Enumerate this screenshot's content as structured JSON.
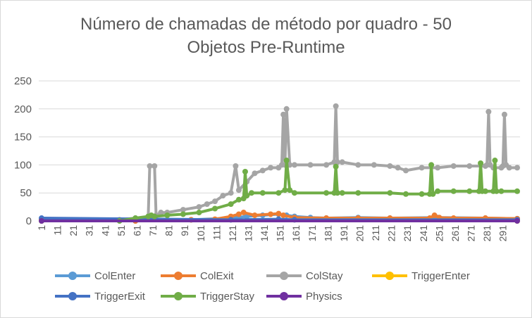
{
  "chart_data": {
    "type": "line",
    "title_line1": "Número de chamadas de método por quadro - 50",
    "title_line2": "Objetos Pre-Runtime",
    "xlabel": "",
    "ylabel": "",
    "ylim": [
      0,
      250
    ],
    "yticks": [
      0,
      50,
      100,
      150,
      200,
      250
    ],
    "xticks": [
      1,
      11,
      21,
      31,
      41,
      51,
      61,
      71,
      81,
      91,
      101,
      111,
      121,
      131,
      141,
      151,
      161,
      171,
      181,
      191,
      201,
      211,
      221,
      231,
      241,
      251,
      261,
      271,
      281,
      291
    ],
    "x_range": [
      1,
      300
    ],
    "grid": true,
    "legend_position": "bottom",
    "series": [
      {
        "name": "ColEnter",
        "color": "#5b9bd5",
        "x": [
          1,
          60,
          95,
          120,
          130,
          140,
          150,
          155,
          160,
          170,
          180,
          200,
          220,
          250,
          280,
          300
        ],
        "values": [
          2,
          0,
          2,
          5,
          8,
          10,
          12,
          10,
          8,
          6,
          5,
          6,
          5,
          6,
          5,
          4
        ]
      },
      {
        "name": "ColExit",
        "color": "#ed7d31",
        "x": [
          1,
          60,
          95,
          110,
          120,
          125,
          128,
          135,
          145,
          150,
          153,
          160,
          180,
          200,
          220,
          245,
          248,
          251,
          260,
          280,
          300
        ],
        "values": [
          2,
          0,
          2,
          3,
          8,
          12,
          15,
          10,
          12,
          13,
          10,
          6,
          5,
          5,
          5,
          5,
          10,
          6,
          5,
          5,
          4
        ]
      },
      {
        "name": "ColStay",
        "color": "#a5a5a5",
        "x": [
          1,
          50,
          60,
          68,
          69,
          72,
          73,
          76,
          80,
          90,
          100,
          105,
          110,
          115,
          120,
          123,
          125,
          130,
          135,
          140,
          145,
          150,
          152,
          153,
          154,
          155,
          157,
          160,
          170,
          180,
          185,
          186,
          187,
          190,
          200,
          210,
          220,
          225,
          230,
          240,
          250,
          260,
          270,
          280,
          281,
          282,
          283,
          285,
          290,
          291,
          292,
          293,
          295,
          300
        ],
        "values": [
          2,
          2,
          5,
          5,
          98,
          98,
          10,
          15,
          15,
          20,
          25,
          30,
          35,
          45,
          50,
          98,
          55,
          70,
          85,
          90,
          95,
          95,
          100,
          190,
          100,
          200,
          100,
          100,
          100,
          100,
          105,
          205,
          105,
          105,
          100,
          100,
          98,
          95,
          90,
          95,
          95,
          98,
          98,
          98,
          100,
          195,
          100,
          95,
          95,
          98,
          190,
          100,
          95,
          95
        ]
      },
      {
        "name": "TriggerEnter",
        "color": "#ffc000",
        "x": [
          1,
          300
        ],
        "values": [
          0,
          0
        ]
      },
      {
        "name": "TriggerExit",
        "color": "#4472c4",
        "x": [
          1,
          120,
          150,
          160,
          300
        ],
        "values": [
          5,
          2,
          3,
          2,
          2
        ]
      },
      {
        "name": "TriggerStay",
        "color": "#70ad47",
        "x": [
          1,
          50,
          60,
          68,
          70,
          72,
          80,
          90,
          100,
          110,
          120,
          125,
          128,
          129,
          130,
          133,
          140,
          150,
          154,
          155,
          157,
          160,
          180,
          185,
          186,
          187,
          190,
          200,
          220,
          230,
          240,
          245,
          246,
          247,
          250,
          260,
          270,
          276,
          277,
          278,
          280,
          285,
          286,
          287,
          290,
          300
        ],
        "values": [
          0,
          0,
          5,
          8,
          10,
          8,
          10,
          12,
          15,
          22,
          30,
          38,
          40,
          88,
          45,
          50,
          50,
          50,
          55,
          108,
          55,
          50,
          50,
          50,
          97,
          50,
          50,
          50,
          50,
          48,
          48,
          48,
          100,
          48,
          53,
          53,
          53,
          53,
          103,
          53,
          53,
          53,
          108,
          53,
          53,
          53
        ]
      },
      {
        "name": "Physics",
        "color": "#7030a0",
        "x": [
          1,
          300
        ],
        "values": [
          0,
          0
        ]
      }
    ]
  }
}
